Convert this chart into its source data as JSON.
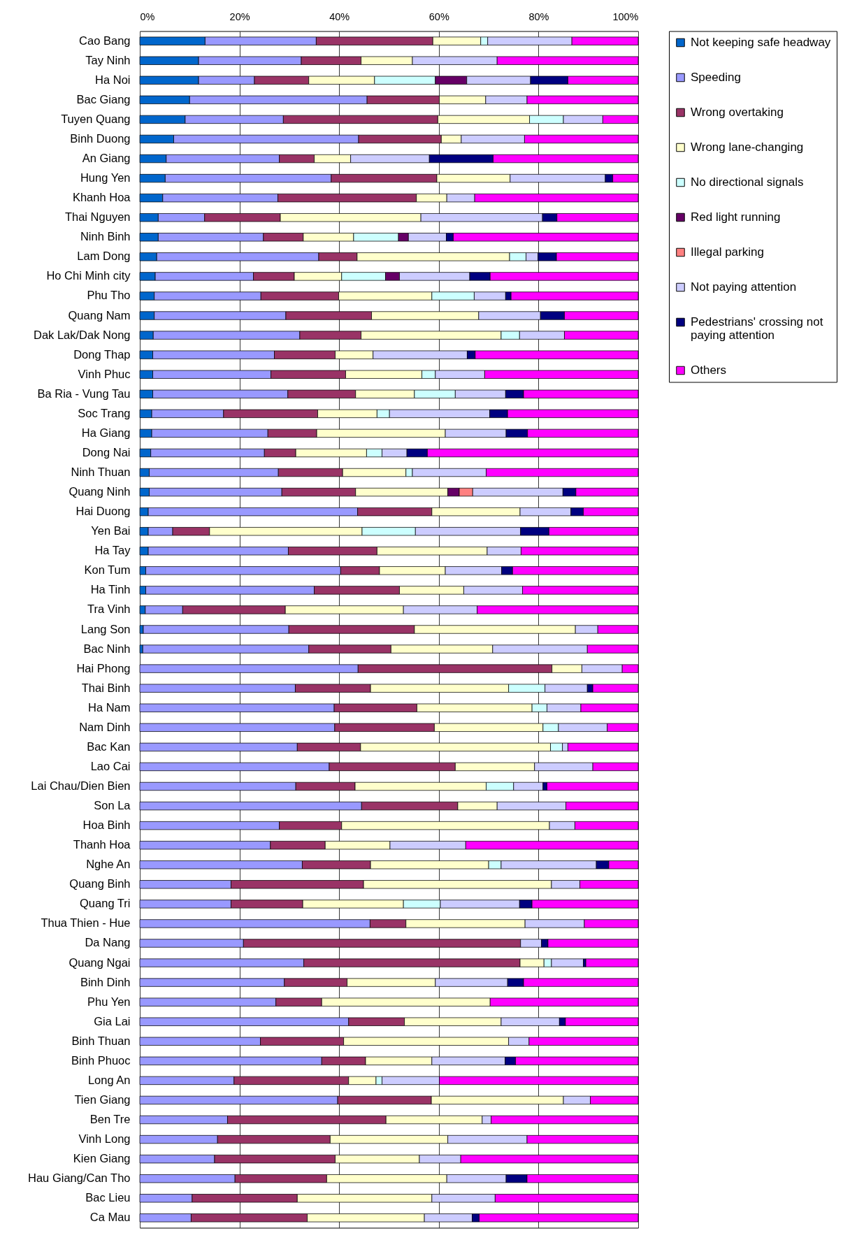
{
  "chart_data": {
    "type": "bar",
    "orientation": "horizontal",
    "stacked": true,
    "categories": [
      "Cao Bang",
      "Tay Ninh",
      "Ha Noi",
      "Bac Giang",
      "Tuyen Quang",
      "Binh Duong",
      "An Giang",
      "Hung Yen",
      "Khanh Hoa",
      "Thai Nguyen",
      "Ninh Binh",
      "Lam Dong",
      "Ho Chi Minh city",
      "Phu Tho",
      "Quang Nam",
      "Dak Lak/Dak Nong",
      "Dong Thap",
      "Vinh Phuc",
      "Ba Ria - Vung Tau",
      "Soc Trang",
      "Ha Giang",
      "Dong Nai",
      "Ninh Thuan",
      "Quang Ninh",
      "Hai Duong",
      "Yen Bai",
      "Ha Tay",
      "Kon Tum",
      "Ha Tinh",
      "Tra Vinh",
      "Lang Son",
      "Bac Ninh",
      "Hai Phong",
      "Thai Binh",
      "Ha Nam",
      "Nam Dinh",
      "Bac Kan",
      "Lao Cai",
      "Lai Chau/Dien Bien",
      "Son La",
      "Hoa Binh",
      "Thanh Hoa",
      "Nghe An",
      "Quang Binh",
      "Quang Tri",
      "Thua Thien - Hue",
      "Da Nang",
      "Quang Ngai",
      "Binh Dinh",
      "Phu Yen",
      "Gia Lai",
      "Binh Thuan",
      "Binh Phuoc",
      "Long An",
      "Tien Giang",
      "Ben Tre",
      "Vinh Long",
      "Kien Giang",
      "Hau Giang/Can Tho",
      "Bac Lieu",
      "Ca Mau"
    ],
    "series": [
      {
        "name": "Not keeping safe headway",
        "color": "#0066cc",
        "values": [
          13.1,
          11.8,
          11.8,
          10.0,
          9.1,
          6.8,
          5.3,
          5.1,
          4.6,
          3.7,
          3.7,
          3.4,
          3.1,
          2.9,
          2.9,
          2.7,
          2.6,
          2.6,
          2.6,
          2.4,
          2.4,
          2.2,
          1.9,
          1.9,
          1.7,
          1.7,
          1.7,
          1.2,
          1.2,
          1.1,
          0.7,
          0.6,
          null,
          null,
          null,
          null,
          null,
          null,
          null,
          null,
          null,
          null,
          null,
          null,
          null,
          null,
          null,
          null,
          null,
          null,
          null,
          null,
          null,
          null,
          null,
          null,
          null,
          null,
          null,
          null,
          null
        ]
      },
      {
        "name": "Speeding",
        "color": "#9999ff",
        "values": [
          22.3,
          20.6,
          11.2,
          35.6,
          19.7,
          37.1,
          22.7,
          33.3,
          23.1,
          9.3,
          21.1,
          32.5,
          19.7,
          21.4,
          26.4,
          29.4,
          24.4,
          23.7,
          27.1,
          14.4,
          23.3,
          22.8,
          25.9,
          26.6,
          42.0,
          4.9,
          28.1,
          39.1,
          33.8,
          7.5,
          29.2,
          33.3,
          43.8,
          31.2,
          39.0,
          39.1,
          31.6,
          38.0,
          31.3,
          44.5,
          28.0,
          26.2,
          32.6,
          18.3,
          18.3,
          46.2,
          20.8,
          32.9,
          29.0,
          27.3,
          41.9,
          24.2,
          36.5,
          18.9,
          39.7,
          17.6,
          15.6,
          15.0,
          19.1,
          10.5,
          10.3
        ]
      },
      {
        "name": "Wrong overtaking",
        "color": "#993366",
        "values": [
          23.4,
          12.0,
          10.9,
          14.5,
          31.0,
          16.6,
          7.0,
          21.2,
          27.8,
          15.2,
          8.0,
          7.7,
          8.2,
          15.6,
          17.2,
          12.3,
          12.2,
          15.0,
          13.6,
          18.9,
          9.8,
          6.3,
          12.9,
          14.8,
          14.9,
          7.4,
          17.8,
          7.8,
          17.1,
          20.6,
          25.2,
          16.5,
          38.9,
          15.1,
          16.6,
          20.0,
          12.7,
          25.3,
          11.9,
          19.3,
          12.5,
          11.0,
          13.7,
          26.6,
          14.4,
          7.2,
          55.6,
          43.4,
          12.6,
          9.2,
          11.2,
          16.7,
          8.8,
          23.0,
          18.8,
          31.8,
          22.6,
          24.2,
          18.4,
          21.1,
          23.3
        ]
      },
      {
        "name": "Wrong lane-changing",
        "color": "#ffffcc",
        "values": [
          9.6,
          10.3,
          13.2,
          9.3,
          18.4,
          4.0,
          7.3,
          14.7,
          6.1,
          28.2,
          10.1,
          30.6,
          9.5,
          18.7,
          21.5,
          28.1,
          7.6,
          15.3,
          11.8,
          11.9,
          25.8,
          14.2,
          12.7,
          18.5,
          17.7,
          30.6,
          22.1,
          13.2,
          12.9,
          23.7,
          32.3,
          20.4,
          6.0,
          27.7,
          23.1,
          21.8,
          38.1,
          15.9,
          26.3,
          7.9,
          41.7,
          13.0,
          23.7,
          37.7,
          20.2,
          23.9,
          null,
          4.8,
          17.7,
          33.8,
          19.4,
          33.1,
          13.3,
          5.5,
          26.5,
          19.3,
          23.6,
          16.9,
          24.1,
          27.0,
          23.5
        ]
      },
      {
        "name": "No directional signals",
        "color": "#ccffff",
        "values": [
          1.4,
          null,
          12.2,
          null,
          6.8,
          null,
          null,
          null,
          null,
          null,
          9.0,
          3.3,
          8.8,
          8.5,
          null,
          3.7,
          null,
          2.7,
          8.2,
          2.5,
          null,
          3.1,
          1.3,
          null,
          null,
          10.7,
          null,
          null,
          null,
          null,
          null,
          null,
          null,
          7.3,
          3.0,
          3.1,
          2.4,
          null,
          5.5,
          null,
          null,
          null,
          2.5,
          null,
          7.4,
          null,
          null,
          1.5,
          null,
          null,
          null,
          null,
          null,
          1.2,
          null,
          null,
          null,
          null,
          null,
          null,
          null
        ]
      },
      {
        "name": "Red light running",
        "color": "#660066",
        "values": [
          null,
          null,
          6.3,
          null,
          null,
          null,
          null,
          null,
          null,
          null,
          2.0,
          null,
          2.8,
          null,
          null,
          null,
          null,
          null,
          null,
          null,
          null,
          null,
          null,
          2.3,
          null,
          null,
          null,
          null,
          null,
          null,
          null,
          null,
          null,
          null,
          null,
          null,
          null,
          null,
          null,
          null,
          null,
          null,
          null,
          null,
          null,
          null,
          null,
          null,
          null,
          null,
          null,
          null,
          null,
          null,
          null,
          null,
          null,
          null,
          null,
          null,
          null
        ]
      },
      {
        "name": "Illegal parking",
        "color": "#ff8080",
        "values": [
          null,
          null,
          null,
          null,
          null,
          null,
          null,
          null,
          null,
          null,
          null,
          null,
          null,
          null,
          null,
          null,
          null,
          null,
          null,
          null,
          null,
          null,
          null,
          2.7,
          null,
          null,
          null,
          null,
          null,
          null,
          null,
          null,
          null,
          null,
          null,
          null,
          null,
          null,
          null,
          null,
          null,
          null,
          null,
          null,
          null,
          null,
          null,
          null,
          null,
          null,
          null,
          null,
          null,
          null,
          null,
          null,
          null,
          null,
          null,
          null,
          null
        ]
      },
      {
        "name": "Not paying attention",
        "color": "#ccccff",
        "values": [
          16.9,
          17.0,
          12.8,
          8.3,
          7.9,
          12.7,
          15.8,
          19.1,
          5.6,
          24.4,
          7.6,
          2.4,
          14.1,
          6.3,
          12.4,
          9.0,
          18.9,
          9.9,
          10.1,
          20.1,
          12.2,
          5.0,
          14.8,
          18.1,
          10.2,
          21.1,
          6.8,
          11.3,
          11.8,
          14.8,
          4.5,
          19.0,
          8.1,
          8.5,
          6.8,
          9.8,
          1.1,
          11.7,
          5.9,
          13.8,
          5.1,
          15.2,
          19.1,
          5.7,
          15.9,
          11.9,
          4.2,
          6.4,
          14.5,
          null,
          11.7,
          4.1,
          14.7,
          11.5,
          5.4,
          1.8,
          15.9,
          8.3,
          11.9,
          12.7,
          9.6
        ]
      },
      {
        "name": "Pedestrians' crossing not paying attention",
        "color": "#000080",
        "values": [
          null,
          null,
          7.5,
          null,
          null,
          null,
          12.8,
          1.5,
          null,
          2.9,
          1.4,
          3.7,
          4.1,
          1.1,
          4.8,
          null,
          1.6,
          null,
          3.6,
          3.6,
          4.3,
          4.1,
          null,
          2.6,
          2.5,
          5.7,
          null,
          2.2,
          null,
          null,
          null,
          null,
          null,
          1.1,
          null,
          null,
          null,
          null,
          0.8,
          null,
          null,
          null,
          2.5,
          null,
          2.5,
          null,
          1.3,
          0.5,
          3.2,
          null,
          1.2,
          null,
          2.1,
          null,
          null,
          null,
          null,
          null,
          4.2,
          null,
          1.4
        ]
      },
      {
        "name": "Others",
        "color": "#ff00ff",
        "values": [
          13.3,
          28.3,
          14.1,
          22.3,
          7.1,
          22.8,
          29.1,
          5.1,
          32.8,
          16.3,
          37.1,
          16.4,
          29.7,
          25.5,
          14.8,
          14.8,
          32.7,
          30.8,
          23.0,
          26.2,
          22.2,
          42.3,
          30.5,
          12.5,
          11.0,
          17.9,
          23.5,
          25.2,
          23.2,
          32.3,
          8.1,
          10.2,
          3.2,
          9.1,
          11.5,
          6.2,
          14.1,
          9.1,
          18.3,
          14.5,
          12.7,
          34.6,
          5.9,
          11.7,
          21.3,
          10.8,
          18.1,
          10.5,
          23.0,
          29.7,
          14.6,
          21.9,
          24.6,
          39.9,
          9.6,
          29.5,
          22.3,
          35.6,
          22.3,
          28.7,
          31.9
        ]
      }
    ],
    "xlim": [
      0,
      100
    ],
    "xticks": [
      {
        "value": 0,
        "label": "0%"
      },
      {
        "value": 20,
        "label": "20%"
      },
      {
        "value": 40,
        "label": "40%"
      },
      {
        "value": 60,
        "label": "60%"
      },
      {
        "value": 80,
        "label": "80%"
      },
      {
        "value": 100,
        "label": "100%"
      }
    ],
    "grid": "x",
    "legend": "right"
  }
}
